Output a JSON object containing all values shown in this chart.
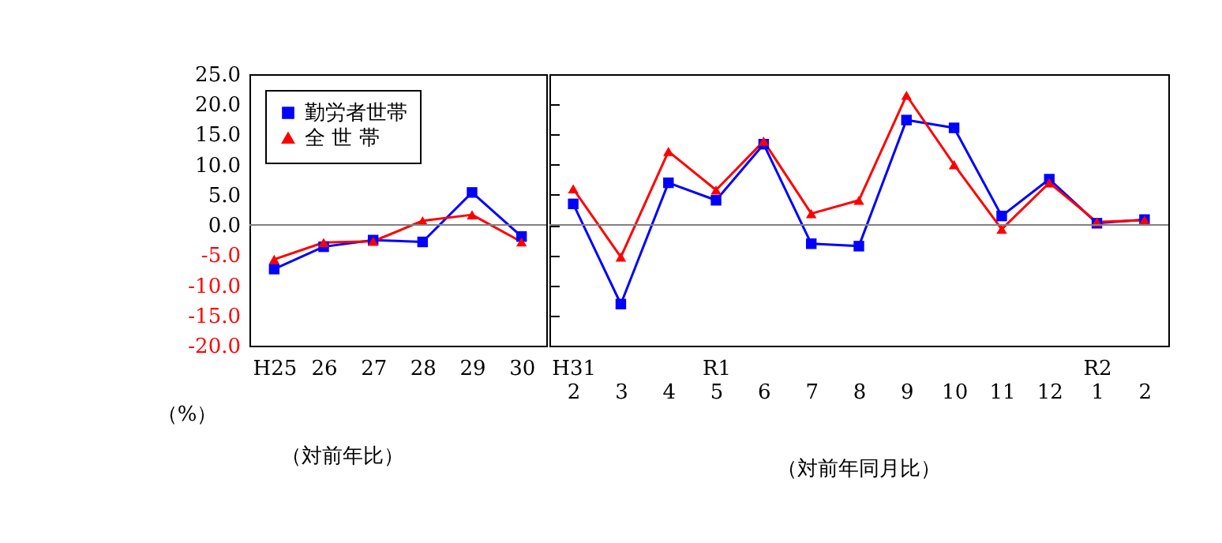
{
  "chart_data": [
    {
      "type": "line",
      "ylabel": "（%）",
      "categories": [
        "H25",
        "26",
        "27",
        "28",
        "29",
        "30"
      ],
      "series": [
        {
          "name": "勤労者世帯",
          "color": "#0000ff",
          "marker": "square",
          "values": [
            -7.3,
            -3.6,
            -2.5,
            -2.8,
            5.4,
            -1.9
          ]
        },
        {
          "name": "全 世 帯",
          "color": "#ff0000",
          "marker": "triangle",
          "values": [
            -5.7,
            -2.9,
            -2.7,
            0.7,
            1.7,
            -2.8
          ]
        }
      ],
      "ylim": [
        -20,
        25
      ],
      "yticks": [
        {
          "value": -20,
          "label": "-20.0"
        },
        {
          "value": -15,
          "label": "-15.0"
        },
        {
          "value": -10,
          "label": "-10.0"
        },
        {
          "value": -5,
          "label": "-5.0"
        },
        {
          "value": 0,
          "label": "0.0"
        },
        {
          "value": 5,
          "label": "5.0"
        },
        {
          "value": 10,
          "label": "10.0"
        },
        {
          "value": 15,
          "label": "15.0"
        },
        {
          "value": 20,
          "label": "20.0"
        },
        {
          "value": 25,
          "label": "25.0"
        }
      ],
      "ref_lines": [
        {
          "axis": "y",
          "value": 0,
          "color": "#808080"
        }
      ],
      "legend": "top left",
      "grid": false,
      "annotations": [
        "（対前年比）"
      ]
    },
    {
      "type": "line",
      "categories": [
        "H31\n2",
        "3",
        "4",
        "R1\n5",
        "6",
        "7",
        "8",
        "9",
        "10",
        "11",
        "12",
        "R2\n1",
        "2"
      ],
      "series": [
        {
          "color": "#0000ff",
          "marker": "square",
          "values": [
            3.5,
            -13.1,
            7.0,
            4.1,
            13.4,
            -3.1,
            -3.5,
            17.4,
            16.1,
            1.5,
            7.6,
            0.3,
            0.9
          ]
        },
        {
          "color": "#ff0000",
          "marker": "triangle",
          "values": [
            6.0,
            -5.3,
            12.2,
            5.8,
            13.9,
            1.9,
            4.1,
            21.5,
            10.0,
            -0.7,
            7.0,
            0.5,
            0.8
          ]
        }
      ],
      "ylim": [
        -20,
        25
      ],
      "yticks": [
        -20,
        -15,
        -10,
        -5,
        0,
        5,
        10,
        15,
        20,
        25
      ],
      "tick_labels": "x",
      "ref_lines": [
        {
          "axis": "y",
          "value": 0,
          "color": "#808080"
        }
      ],
      "grid": false,
      "annotations": [
        "（対前年同月比）"
      ]
    }
  ]
}
